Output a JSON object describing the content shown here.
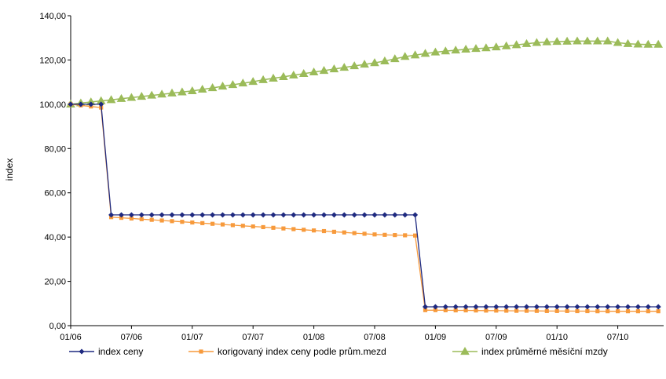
{
  "chart_data": {
    "type": "line",
    "title": "",
    "xlabel": "",
    "ylabel": "index",
    "ylim": [
      0,
      140
    ],
    "yticks": [
      "0,00",
      "20,00",
      "40,00",
      "60,00",
      "80,00",
      "100,00",
      "120,00",
      "140,00"
    ],
    "xticks": [
      "01/06",
      "07/06",
      "01/07",
      "07/07",
      "01/08",
      "07/08",
      "01/09",
      "07/09",
      "01/10",
      "07/10"
    ],
    "grid": false,
    "legend": "bottom",
    "x_start": "01/06",
    "x_step": "month",
    "series": [
      {
        "name": "index ceny",
        "color": "#1F2A80",
        "marker": "diamond",
        "values": [
          100,
          100,
          100,
          100,
          50,
          50,
          50,
          50,
          50,
          50,
          50,
          50,
          50,
          50,
          50,
          50,
          50,
          50,
          50,
          50,
          50,
          50,
          50,
          50,
          50,
          50,
          50,
          50,
          50,
          50,
          50,
          50,
          50,
          50,
          50,
          8.5,
          8.5,
          8.5,
          8.5,
          8.5,
          8.5,
          8.5,
          8.5,
          8.5,
          8.5,
          8.5,
          8.5,
          8.5,
          8.5,
          8.5,
          8.5,
          8.5,
          8.5,
          8.5,
          8.5,
          8.5,
          8.5,
          8.5,
          8.5
        ]
      },
      {
        "name": "korigovaný index ceny podle prům.mezd",
        "color": "#F79A3C",
        "marker": "square",
        "values": [
          100,
          99.5,
          99,
          98.5,
          49,
          48.7,
          48.4,
          48.1,
          47.8,
          47.5,
          47.2,
          46.9,
          46.6,
          46.3,
          46,
          45.7,
          45.4,
          45.1,
          44.8,
          44.5,
          44.2,
          43.9,
          43.6,
          43.3,
          43,
          42.7,
          42.4,
          42.1,
          41.8,
          41.5,
          41.2,
          41,
          40.9,
          40.8,
          40.7,
          7,
          7,
          6.95,
          6.9,
          6.9,
          6.85,
          6.8,
          6.8,
          6.75,
          6.7,
          6.7,
          6.65,
          6.6,
          6.6,
          6.6,
          6.55,
          6.55,
          6.5,
          6.5,
          6.5,
          6.5,
          6.5,
          6.5,
          6.5
        ]
      },
      {
        "name": "index průměrné měsíční mzdy",
        "color": "#9BBB59",
        "marker": "triangle",
        "values": [
          100,
          100.5,
          101,
          101.5,
          102,
          102.5,
          103,
          103.5,
          104,
          104.5,
          105,
          105.5,
          106,
          106.7,
          107.4,
          108.1,
          108.8,
          109.5,
          110.2,
          111,
          111.7,
          112.4,
          113.1,
          113.8,
          114.5,
          115.2,
          115.9,
          116.6,
          117.3,
          118,
          118.7,
          119.5,
          120.5,
          121.5,
          122.2,
          122.9,
          123.5,
          124,
          124.4,
          124.8,
          125.1,
          125.4,
          125.8,
          126.3,
          126.8,
          127.3,
          127.8,
          128.1,
          128.3,
          128.4,
          128.5,
          128.5,
          128.5,
          128.5,
          127.8,
          127.3,
          127.1,
          127,
          127
        ]
      }
    ]
  }
}
